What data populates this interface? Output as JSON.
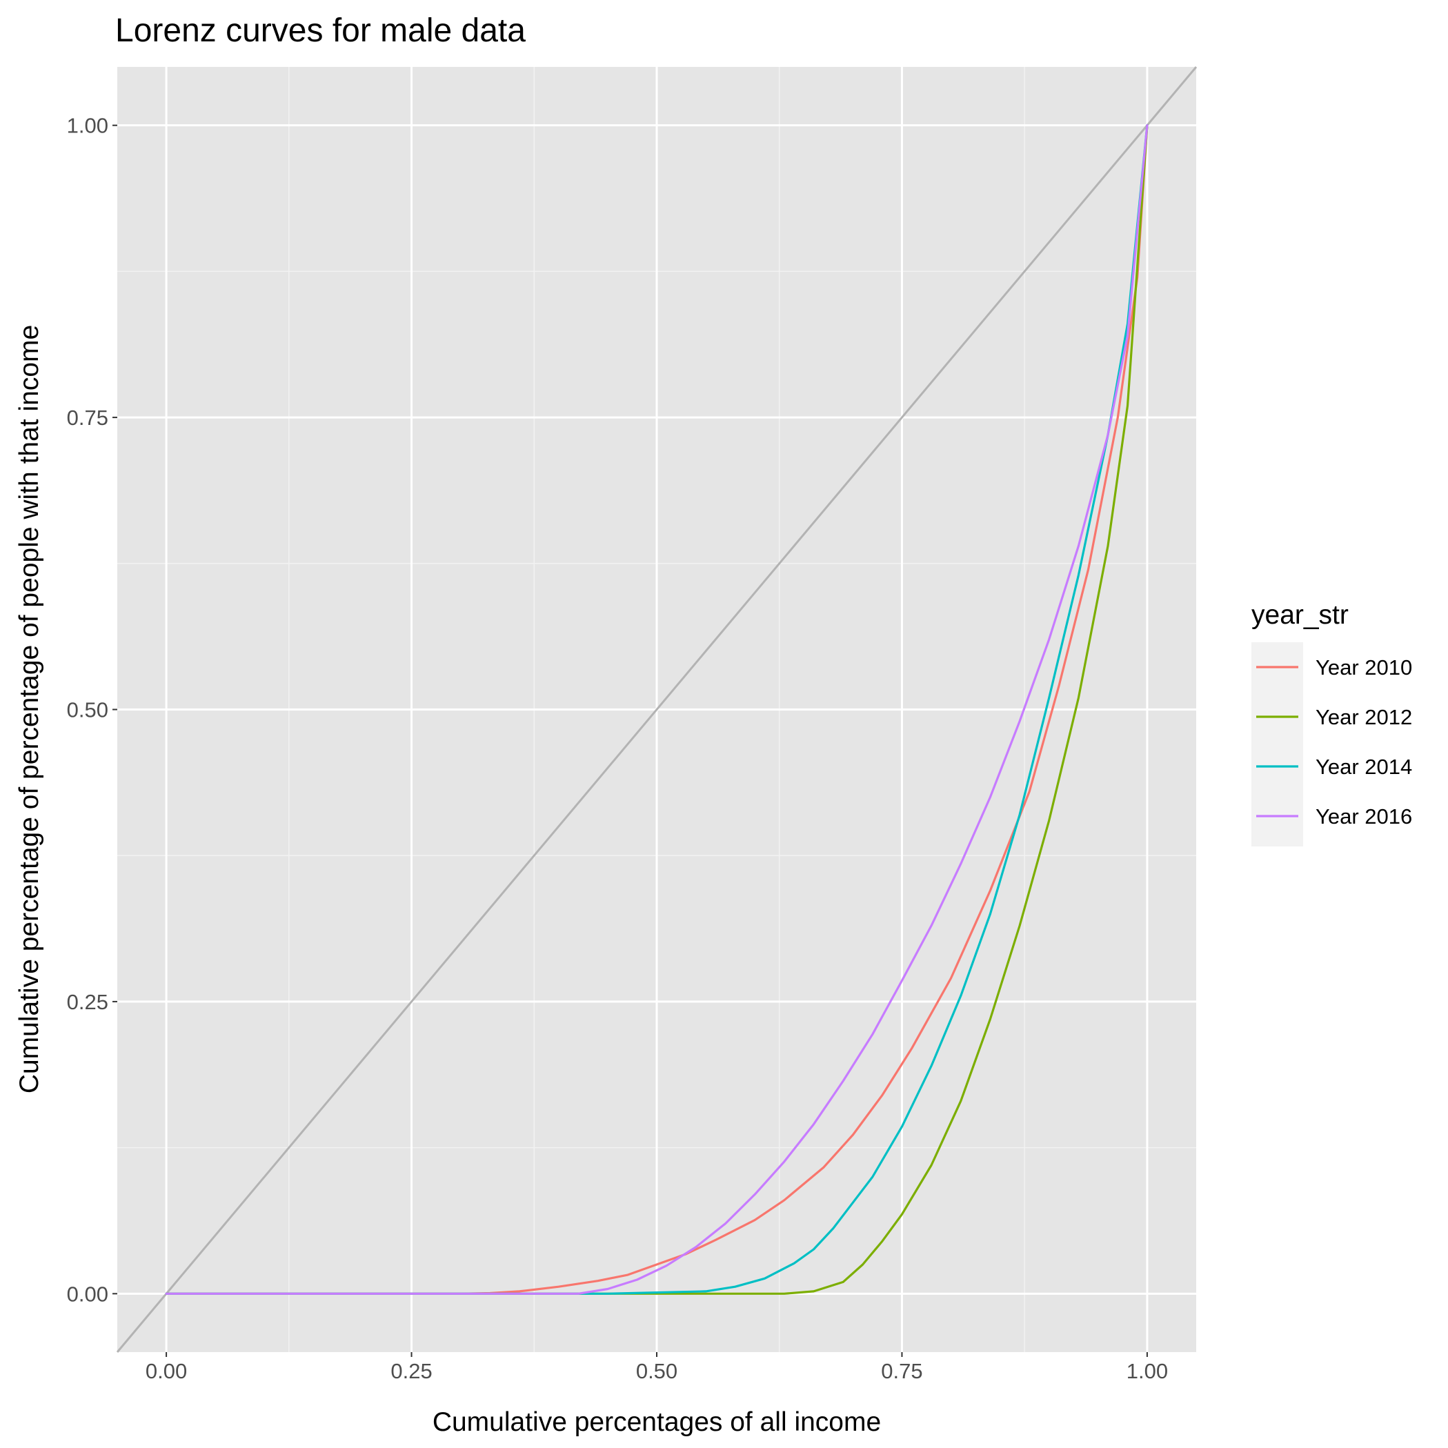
{
  "chart_data": {
    "type": "line",
    "title": "Lorenz curves for male data",
    "xlabel": "Cumulative percentages of all income",
    "ylabel": "Cumulative percentage of percentage of people with that income",
    "xlim": [
      -0.05,
      1.05
    ],
    "ylim": [
      -0.05,
      1.05
    ],
    "x_ticks": [
      "0.00",
      "0.25",
      "0.50",
      "0.75",
      "1.00"
    ],
    "y_ticks": [
      "0.00",
      "0.25",
      "0.50",
      "0.75",
      "1.00"
    ],
    "grid": true,
    "panel_background": "#e5e5e5",
    "reference_line": {
      "color": "#b3b3b3",
      "points": [
        [
          -0.05,
          -0.05
        ],
        [
          1.05,
          1.05
        ]
      ]
    },
    "legend": {
      "title": "year_str",
      "position": "right"
    },
    "series": [
      {
        "name": "Year 2010",
        "color": "#f8766d",
        "points": [
          [
            0,
            0
          ],
          [
            0.3,
            0
          ],
          [
            0.33,
            0.0005
          ],
          [
            0.36,
            0.002
          ],
          [
            0.4,
            0.006
          ],
          [
            0.44,
            0.011
          ],
          [
            0.47,
            0.016
          ],
          [
            0.5,
            0.025
          ],
          [
            0.53,
            0.034
          ],
          [
            0.56,
            0.046
          ],
          [
            0.6,
            0.063
          ],
          [
            0.63,
            0.08
          ],
          [
            0.67,
            0.108
          ],
          [
            0.7,
            0.136
          ],
          [
            0.73,
            0.17
          ],
          [
            0.76,
            0.21
          ],
          [
            0.8,
            0.27
          ],
          [
            0.84,
            0.345
          ],
          [
            0.88,
            0.43
          ],
          [
            0.91,
            0.52
          ],
          [
            0.94,
            0.62
          ],
          [
            0.97,
            0.75
          ],
          [
            0.99,
            0.87
          ],
          [
            1.0,
            1.0
          ]
        ]
      },
      {
        "name": "Year 2012",
        "color": "#7cae00",
        "points": [
          [
            0,
            0
          ],
          [
            0.63,
            0
          ],
          [
            0.66,
            0.002
          ],
          [
            0.69,
            0.01
          ],
          [
            0.71,
            0.025
          ],
          [
            0.73,
            0.045
          ],
          [
            0.75,
            0.068
          ],
          [
            0.78,
            0.11
          ],
          [
            0.81,
            0.165
          ],
          [
            0.84,
            0.235
          ],
          [
            0.87,
            0.315
          ],
          [
            0.9,
            0.405
          ],
          [
            0.93,
            0.51
          ],
          [
            0.96,
            0.64
          ],
          [
            0.98,
            0.76
          ],
          [
            1.0,
            1.0
          ]
        ]
      },
      {
        "name": "Year 2014",
        "color": "#00bfc4",
        "points": [
          [
            0,
            0
          ],
          [
            0.45,
            0
          ],
          [
            0.55,
            0.002
          ],
          [
            0.58,
            0.006
          ],
          [
            0.61,
            0.013
          ],
          [
            0.64,
            0.026
          ],
          [
            0.66,
            0.038
          ],
          [
            0.68,
            0.056
          ],
          [
            0.7,
            0.078
          ],
          [
            0.72,
            0.1
          ],
          [
            0.75,
            0.143
          ],
          [
            0.78,
            0.195
          ],
          [
            0.81,
            0.255
          ],
          [
            0.84,
            0.325
          ],
          [
            0.87,
            0.41
          ],
          [
            0.9,
            0.51
          ],
          [
            0.93,
            0.615
          ],
          [
            0.96,
            0.735
          ],
          [
            0.98,
            0.83
          ],
          [
            1.0,
            1.0
          ]
        ]
      },
      {
        "name": "Year 2016",
        "color": "#c77cff",
        "points": [
          [
            0,
            0
          ],
          [
            0.42,
            0
          ],
          [
            0.45,
            0.004
          ],
          [
            0.48,
            0.012
          ],
          [
            0.51,
            0.024
          ],
          [
            0.54,
            0.04
          ],
          [
            0.57,
            0.06
          ],
          [
            0.6,
            0.085
          ],
          [
            0.63,
            0.113
          ],
          [
            0.66,
            0.145
          ],
          [
            0.69,
            0.182
          ],
          [
            0.72,
            0.222
          ],
          [
            0.75,
            0.268
          ],
          [
            0.78,
            0.315
          ],
          [
            0.81,
            0.368
          ],
          [
            0.84,
            0.425
          ],
          [
            0.87,
            0.49
          ],
          [
            0.9,
            0.56
          ],
          [
            0.93,
            0.64
          ],
          [
            0.96,
            0.735
          ],
          [
            0.98,
            0.82
          ],
          [
            1.0,
            1.0
          ]
        ]
      }
    ]
  }
}
